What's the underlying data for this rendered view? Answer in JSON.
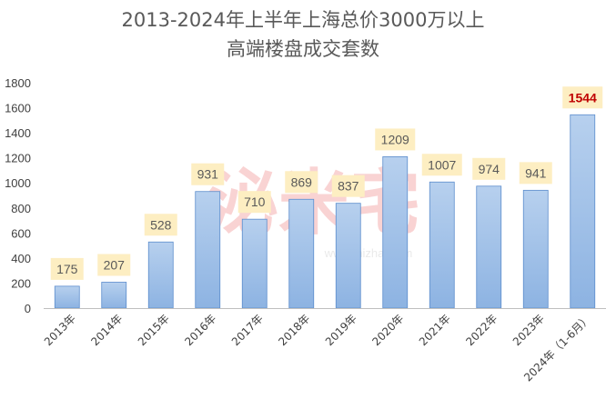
{
  "chart_data": {
    "type": "bar",
    "title": "2013-2024年上半年上海总价3000万以上",
    "subtitle": "高端楼盘成交套数",
    "categories": [
      "2013年",
      "2014年",
      "2015年",
      "2016年",
      "2017年",
      "2018年",
      "2019年",
      "2020年",
      "2021年",
      "2022年",
      "2023年",
      "2024年（1-6月）"
    ],
    "values": [
      175,
      207,
      528,
      931,
      710,
      869,
      837,
      1209,
      1007,
      974,
      941,
      1544
    ],
    "data_labels": [
      "175",
      "207",
      "528",
      "931",
      "710",
      "869",
      "837",
      "1209",
      "1007",
      "974",
      "941",
      "1544"
    ],
    "ylim": [
      0,
      1800
    ],
    "yticks": [
      0,
      200,
      400,
      600,
      800,
      1000,
      1200,
      1400,
      1600,
      1800
    ],
    "ytick_labels": [
      "0",
      "200",
      "400",
      "600",
      "800",
      "1000",
      "1200",
      "1400",
      "1600",
      "1800"
    ],
    "grid": false,
    "legend": "none",
    "highlight_index": 11,
    "colors": {
      "bar_fill_top": "#b7d0ee",
      "bar_fill_bottom": "#8db3e2",
      "bar_stroke": "#5b8ccc",
      "label_bg": "#fdeec2",
      "label_text": "#595959",
      "highlight_text": "#c00000",
      "axis": "#bfbfbf"
    },
    "watermark": {
      "text": "泌米宅",
      "url": "www.mizhai.com"
    }
  }
}
